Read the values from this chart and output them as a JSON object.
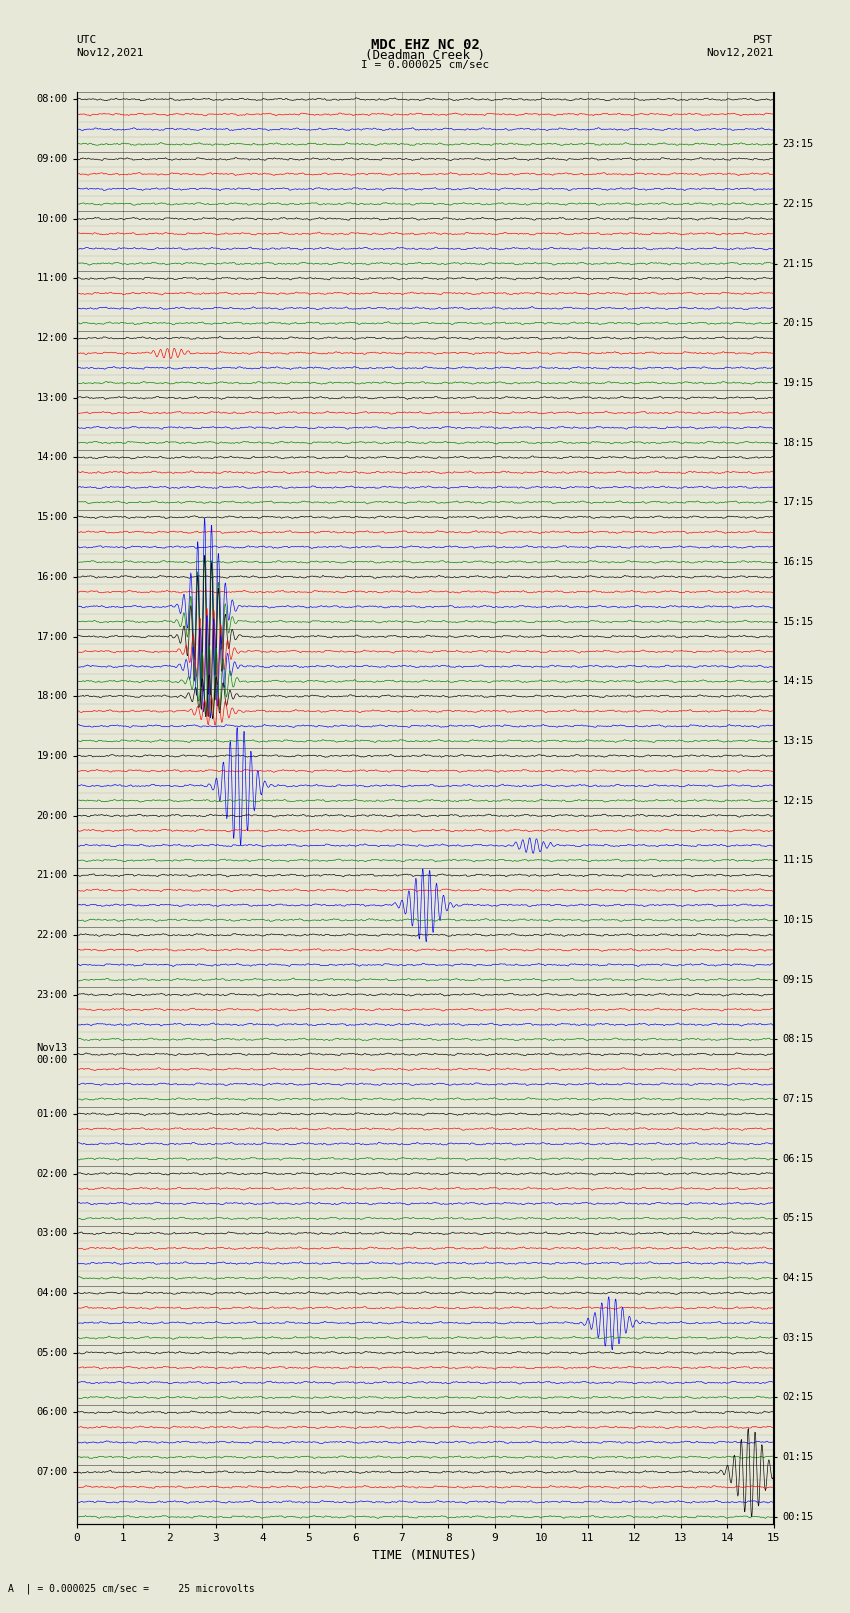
{
  "title_line1": "MDC EHZ NC 02",
  "title_line2": "(Deadman Creek )",
  "scale_label": "I = 0.000025 cm/sec",
  "footer_label": "A  | = 0.000025 cm/sec =     25 microvolts",
  "utc_label": "UTC\nNov12,2021",
  "pst_label": "PST\nNov12,2021",
  "xlabel": "TIME (MINUTES)",
  "left_times": [
    "08:00",
    "09:00",
    "10:00",
    "11:00",
    "12:00",
    "13:00",
    "14:00",
    "15:00",
    "16:00",
    "17:00",
    "18:00",
    "19:00",
    "20:00",
    "21:00",
    "22:00",
    "23:00",
    "Nov13\n00:00",
    "01:00",
    "02:00",
    "03:00",
    "04:00",
    "05:00",
    "06:00",
    "07:00"
  ],
  "right_times": [
    "00:15",
    "01:15",
    "02:15",
    "03:15",
    "04:15",
    "05:15",
    "06:15",
    "07:15",
    "08:15",
    "09:15",
    "10:15",
    "11:15",
    "12:15",
    "13:15",
    "14:15",
    "15:15",
    "16:15",
    "17:15",
    "18:15",
    "19:15",
    "20:15",
    "21:15",
    "22:15",
    "23:15"
  ],
  "num_rows": 96,
  "colors_cycle": [
    "black",
    "red",
    "blue",
    "green"
  ],
  "bg_color": "#e8e8d8",
  "noise_amplitude": 0.12,
  "events": {
    "17": {
      "t": 2.0,
      "amp": 0.35,
      "color": "red"
    },
    "34": {
      "t": 2.8,
      "amp": 6.0,
      "color": "blue"
    },
    "35": {
      "t": 2.8,
      "amp": 4.5,
      "color": "green"
    },
    "36": {
      "t": 2.8,
      "amp": 5.5,
      "color": "black"
    },
    "37": {
      "t": 2.85,
      "amp": 3.0,
      "color": "red"
    },
    "38": {
      "t": 2.85,
      "amp": 3.5,
      "color": "blue"
    },
    "39": {
      "t": 2.9,
      "amp": 2.5,
      "color": "green"
    },
    "40": {
      "t": 2.9,
      "amp": 1.5,
      "color": "black"
    },
    "41": {
      "t": 2.95,
      "amp": 1.0,
      "color": "red"
    },
    "46": {
      "t": 3.5,
      "amp": 4.0,
      "color": "blue"
    },
    "50": {
      "t": 9.8,
      "amp": 0.5,
      "color": "blue"
    },
    "54": {
      "t": 7.5,
      "amp": 2.5,
      "color": "black"
    },
    "82": {
      "t": 11.5,
      "amp": 1.8,
      "color": "green"
    },
    "92": {
      "t": 14.5,
      "amp": 3.0,
      "color": "red"
    }
  }
}
